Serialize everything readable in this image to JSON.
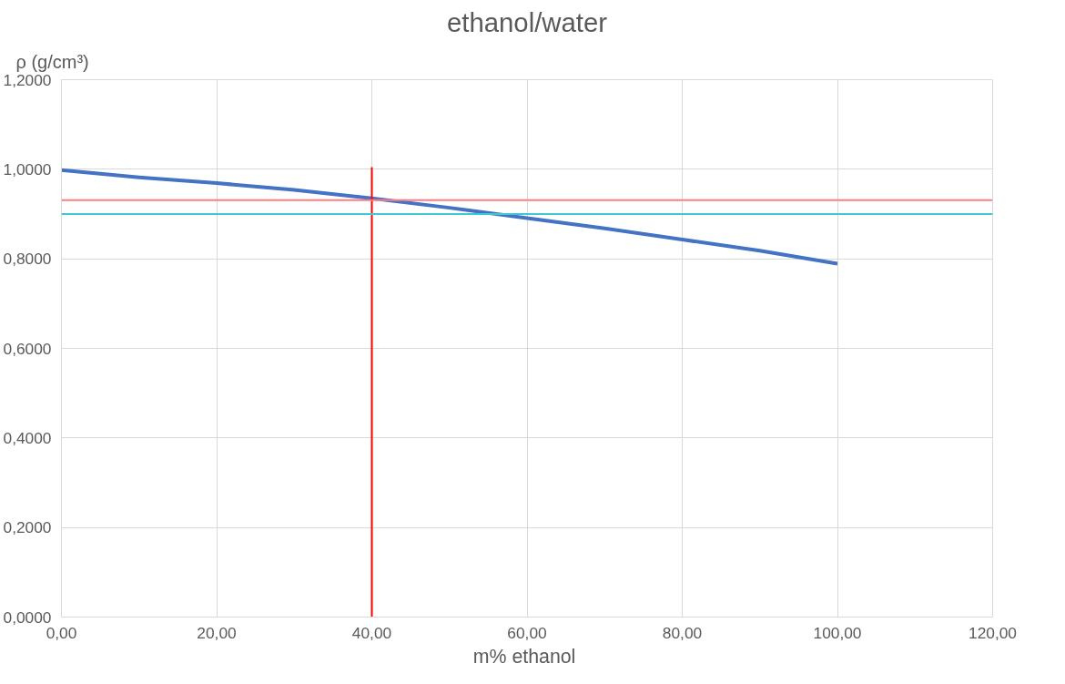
{
  "chart_data": {
    "type": "line",
    "title": "ethanol/water",
    "xlabel": "m%  ethanol",
    "ylabel": "ρ (g/cm³)",
    "series": [
      {
        "color": "#4472c4",
        "x": [
          0,
          10,
          20,
          30,
          40,
          50,
          60,
          70,
          80,
          90,
          100
        ],
        "values": [
          0.998,
          0.982,
          0.969,
          0.954,
          0.935,
          0.914,
          0.891,
          0.868,
          0.843,
          0.818,
          0.789
        ]
      },
      {
        "color": "#ff0000",
        "x": [
          40,
          40
        ],
        "values": [
          0,
          1.005
        ]
      }
    ],
    "ref_lines": [
      {
        "axis": "y",
        "value": 0.931,
        "color": "#ff7c80"
      },
      {
        "axis": "y",
        "value": 0.9,
        "color": "#40c8d0"
      }
    ],
    "xlim": [
      0,
      120
    ],
    "ylim": [
      0,
      1.2
    ],
    "xticks": [
      {
        "value": 0,
        "label": "0,00"
      },
      {
        "value": 20,
        "label": "20,00"
      },
      {
        "value": 40,
        "label": "40,00"
      },
      {
        "value": 60,
        "label": "60,00"
      },
      {
        "value": 80,
        "label": "80,00"
      },
      {
        "value": 100,
        "label": "100,00"
      },
      {
        "value": 120,
        "label": "120,00"
      }
    ],
    "yticks": [
      {
        "value": 0,
        "label": "0,0000"
      },
      {
        "value": 0.2,
        "label": "0,2000"
      },
      {
        "value": 0.4,
        "label": "0,4000"
      },
      {
        "value": 0.6,
        "label": "0,6000"
      },
      {
        "value": 0.8,
        "label": "0,8000"
      },
      {
        "value": 1.0,
        "label": "1,0000"
      },
      {
        "value": 1.2,
        "label": "1,2000"
      }
    ],
    "grid": true
  }
}
